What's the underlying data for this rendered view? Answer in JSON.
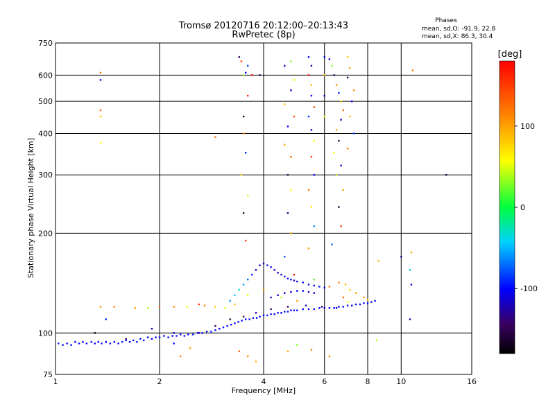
{
  "header": {
    "title_line1": "Tromsø 20120716 20:12:00–20:13:43",
    "title_line2": "RwPretec (8p)",
    "phases_heading": "Phases",
    "phases_o": "mean, sd,O: -91.9, 22.8",
    "phases_x": "mean, sd,X: 86.3, 30.4"
  },
  "colorbar": {
    "label": "[deg]",
    "min": -180,
    "max": 180,
    "ticks": [
      100,
      0,
      -100
    ]
  },
  "chart_data": {
    "type": "scatter",
    "xlabel": "Frequency [MHz]",
    "ylabel": "Stationary phase Virtual Height [km]",
    "xscale": "log",
    "yscale": "log",
    "xlim": [
      1,
      16
    ],
    "ylim": [
      75,
      750
    ],
    "xticks": [
      1,
      2,
      4,
      6,
      8,
      10,
      16
    ],
    "yticks": [
      75,
      100,
      200,
      300,
      400,
      500,
      600,
      750
    ],
    "grid": true,
    "color_by": "phase_deg",
    "points": [
      [
        1.02,
        93,
        -95
      ],
      [
        1.05,
        92,
        -100
      ],
      [
        1.08,
        93,
        -98
      ],
      [
        1.11,
        92,
        -97
      ],
      [
        1.14,
        94,
        -102
      ],
      [
        1.17,
        93,
        -96
      ],
      [
        1.2,
        94,
        -99
      ],
      [
        1.23,
        93,
        -101
      ],
      [
        1.27,
        94,
        -97
      ],
      [
        1.3,
        93,
        -100
      ],
      [
        1.33,
        94,
        -98
      ],
      [
        1.36,
        93,
        -95
      ],
      [
        1.4,
        94,
        -103
      ],
      [
        1.44,
        93,
        -99
      ],
      [
        1.48,
        94,
        -97
      ],
      [
        1.52,
        93,
        -100
      ],
      [
        1.56,
        94,
        -96
      ],
      [
        1.6,
        95,
        -98
      ],
      [
        1.64,
        94,
        -101
      ],
      [
        1.68,
        95,
        -99
      ],
      [
        1.72,
        94,
        -97
      ],
      [
        1.76,
        96,
        -100
      ],
      [
        1.8,
        95,
        -98
      ],
      [
        1.85,
        97,
        -96
      ],
      [
        1.9,
        96,
        -102
      ],
      [
        1.95,
        97,
        -99
      ],
      [
        2.0,
        97,
        -100
      ],
      [
        2.06,
        98,
        -97
      ],
      [
        2.12,
        97,
        -99
      ],
      [
        2.18,
        98,
        -101
      ],
      [
        2.24,
        98,
        -96
      ],
      [
        2.3,
        99,
        -100
      ],
      [
        2.36,
        98,
        -98
      ],
      [
        2.42,
        99,
        -97
      ],
      [
        2.5,
        99,
        -101
      ],
      [
        2.58,
        100,
        -99
      ],
      [
        2.66,
        100,
        -98
      ],
      [
        2.74,
        101,
        -100
      ],
      [
        2.82,
        101,
        -96
      ],
      [
        2.9,
        102,
        -99
      ],
      [
        2.98,
        103,
        -101
      ],
      [
        3.06,
        104,
        -98
      ],
      [
        3.14,
        105,
        -100
      ],
      [
        3.22,
        106,
        -97
      ],
      [
        3.3,
        107,
        -99
      ],
      [
        3.38,
        108,
        -102
      ],
      [
        3.46,
        109,
        -98
      ],
      [
        3.55,
        110,
        -100
      ],
      [
        3.64,
        110,
        -97
      ],
      [
        3.73,
        111,
        -99
      ],
      [
        3.82,
        111,
        -101
      ],
      [
        3.9,
        112,
        -98
      ],
      [
        4.0,
        113,
        -100
      ],
      [
        4.1,
        113,
        -97
      ],
      [
        4.2,
        114,
        -99
      ],
      [
        4.3,
        114,
        -100
      ],
      [
        4.4,
        115,
        -98
      ],
      [
        4.5,
        115,
        -101
      ],
      [
        4.6,
        116,
        -99
      ],
      [
        4.7,
        116,
        -97
      ],
      [
        4.8,
        117,
        -100
      ],
      [
        4.9,
        117,
        -98
      ],
      [
        5.0,
        117,
        -99
      ],
      [
        5.2,
        118,
        -101
      ],
      [
        5.4,
        118,
        -98
      ],
      [
        5.6,
        118,
        -100
      ],
      [
        5.8,
        119,
        -97
      ],
      [
        6.0,
        119,
        -99
      ],
      [
        6.2,
        119,
        -100
      ],
      [
        6.4,
        119,
        -98
      ],
      [
        6.6,
        120,
        -101
      ],
      [
        6.8,
        120,
        -99
      ],
      [
        7.0,
        121,
        -97
      ],
      [
        7.2,
        121,
        -100
      ],
      [
        7.4,
        122,
        -98
      ],
      [
        7.6,
        122,
        -99
      ],
      [
        7.8,
        123,
        -100
      ],
      [
        8.0,
        123,
        -98
      ],
      [
        8.2,
        124,
        -99
      ],
      [
        8.4,
        125,
        -101
      ],
      [
        1.3,
        100,
        -170
      ],
      [
        1.6,
        96,
        -150
      ],
      [
        1.9,
        103,
        -120
      ],
      [
        2.2,
        100,
        -110
      ],
      [
        2.6,
        100,
        -130
      ],
      [
        2.9,
        105,
        -140
      ],
      [
        3.2,
        110,
        -160
      ],
      [
        3.5,
        112,
        -150
      ],
      [
        3.8,
        115,
        -130
      ],
      [
        4.2,
        118,
        -145
      ],
      [
        4.7,
        120,
        -155
      ],
      [
        5.3,
        121,
        -120
      ],
      [
        5.9,
        120,
        -140
      ],
      [
        6.5,
        119,
        -110
      ],
      [
        3.2,
        125,
        -60
      ],
      [
        3.3,
        130,
        -45
      ],
      [
        3.4,
        135,
        -30
      ],
      [
        3.5,
        140,
        -55
      ],
      [
        3.6,
        145,
        -70
      ],
      [
        3.7,
        150,
        -90
      ],
      [
        3.8,
        155,
        -110
      ],
      [
        3.9,
        160,
        -120
      ],
      [
        4.0,
        162,
        -115
      ],
      [
        4.1,
        160,
        -105
      ],
      [
        4.2,
        158,
        -100
      ],
      [
        4.3,
        155,
        -108
      ],
      [
        4.4,
        152,
        -112
      ],
      [
        4.5,
        150,
        -118
      ],
      [
        4.6,
        148,
        -110
      ],
      [
        4.7,
        146,
        -105
      ],
      [
        4.8,
        145,
        -100
      ],
      [
        4.9,
        144,
        -108
      ],
      [
        5.0,
        143,
        -110
      ],
      [
        5.2,
        142,
        -104
      ],
      [
        5.4,
        140,
        -100
      ],
      [
        5.6,
        139,
        -98
      ],
      [
        5.8,
        138,
        -95
      ],
      [
        6.0,
        137,
        -100
      ],
      [
        4.2,
        128,
        -120
      ],
      [
        4.4,
        130,
        -115
      ],
      [
        4.6,
        132,
        -110
      ],
      [
        4.8,
        133,
        -105
      ],
      [
        5.0,
        134,
        -100
      ],
      [
        5.2,
        134,
        -108
      ],
      [
        5.4,
        133,
        -112
      ],
      [
        5.6,
        132,
        -106
      ],
      [
        3.3,
        122,
        90
      ],
      [
        3.6,
        130,
        60
      ],
      [
        4.0,
        135,
        110
      ],
      [
        4.5,
        128,
        40
      ],
      [
        5.0,
        125,
        100
      ],
      [
        6.2,
        138,
        120
      ],
      [
        6.6,
        142,
        110
      ],
      [
        6.9,
        140,
        95
      ],
      [
        7.1,
        135,
        80
      ],
      [
        7.4,
        132,
        100
      ],
      [
        7.8,
        128,
        105
      ],
      [
        8.0,
        126,
        90
      ],
      [
        7.0,
        124,
        60
      ],
      [
        6.8,
        128,
        130
      ],
      [
        5.6,
        145,
        20
      ],
      [
        4.9,
        150,
        170
      ],
      [
        2.0,
        120,
        130
      ],
      [
        2.2,
        120,
        110
      ],
      [
        2.4,
        120,
        60
      ],
      [
        2.7,
        121,
        115
      ],
      [
        2.6,
        122,
        150
      ],
      [
        1.35,
        120,
        110
      ],
      [
        1.48,
        120,
        120
      ],
      [
        1.7,
        119,
        100
      ],
      [
        1.85,
        119,
        40
      ],
      [
        2.9,
        120,
        80
      ],
      [
        3.1,
        119,
        50
      ],
      [
        2.45,
        90,
        100
      ],
      [
        2.3,
        85,
        120
      ],
      [
        3.6,
        85,
        110
      ],
      [
        3.8,
        82,
        90
      ],
      [
        3.4,
        88,
        130
      ],
      [
        4.7,
        88,
        100
      ],
      [
        5.0,
        92,
        30
      ],
      [
        5.5,
        89,
        120
      ],
      [
        6.2,
        85,
        110
      ],
      [
        8.5,
        95,
        40
      ],
      [
        1.4,
        110,
        -90
      ],
      [
        2.2,
        93,
        -100
      ],
      [
        1.35,
        580,
        -110
      ],
      [
        1.35,
        610,
        120
      ],
      [
        1.35,
        450,
        80
      ],
      [
        1.35,
        470,
        130
      ],
      [
        1.35,
        375,
        60
      ],
      [
        3.4,
        680,
        -150
      ],
      [
        3.45,
        660,
        150
      ],
      [
        3.5,
        600,
        30
      ],
      [
        3.55,
        610,
        -100
      ],
      [
        3.6,
        640,
        -80
      ],
      [
        3.7,
        600,
        170
      ],
      [
        3.6,
        520,
        160
      ],
      [
        3.5,
        450,
        -170
      ],
      [
        3.5,
        400,
        110
      ],
      [
        3.55,
        350,
        -90
      ],
      [
        3.45,
        300,
        70
      ],
      [
        3.6,
        260,
        40
      ],
      [
        3.5,
        230,
        -160
      ],
      [
        3.55,
        190,
        150
      ],
      [
        3.9,
        600,
        -140
      ],
      [
        4.6,
        640,
        -120
      ],
      [
        4.8,
        660,
        30
      ],
      [
        4.9,
        580,
        60
      ],
      [
        4.8,
        540,
        -110
      ],
      [
        4.6,
        490,
        90
      ],
      [
        4.9,
        450,
        140
      ],
      [
        4.7,
        420,
        -100
      ],
      [
        4.6,
        370,
        100
      ],
      [
        4.8,
        340,
        120
      ],
      [
        4.7,
        300,
        -150
      ],
      [
        4.8,
        270,
        60
      ],
      [
        4.7,
        230,
        -130
      ],
      [
        4.8,
        200,
        90
      ],
      [
        4.6,
        170,
        -80
      ],
      [
        5.4,
        680,
        -100
      ],
      [
        5.5,
        640,
        -120
      ],
      [
        5.4,
        600,
        170
      ],
      [
        5.5,
        560,
        90
      ],
      [
        5.5,
        520,
        -100
      ],
      [
        5.6,
        480,
        140
      ],
      [
        5.4,
        450,
        -90
      ],
      [
        5.5,
        410,
        -110
      ],
      [
        5.6,
        380,
        60
      ],
      [
        5.5,
        340,
        150
      ],
      [
        5.6,
        300,
        -100
      ],
      [
        5.4,
        270,
        120
      ],
      [
        5.5,
        240,
        70
      ],
      [
        5.6,
        210,
        -60
      ],
      [
        5.4,
        180,
        110
      ],
      [
        6.2,
        670,
        -110
      ],
      [
        6.3,
        640,
        30
      ],
      [
        6.4,
        600,
        -140
      ],
      [
        6.5,
        560,
        110
      ],
      [
        6.6,
        530,
        -90
      ],
      [
        6.7,
        500,
        80
      ],
      [
        6.8,
        470,
        130
      ],
      [
        6.7,
        440,
        -120
      ],
      [
        6.5,
        410,
        100
      ],
      [
        6.6,
        380,
        -150
      ],
      [
        6.4,
        350,
        60
      ],
      [
        6.7,
        320,
        -110
      ],
      [
        6.5,
        300,
        40
      ],
      [
        6.8,
        270,
        100
      ],
      [
        6.6,
        240,
        -160
      ],
      [
        6.7,
        210,
        150
      ],
      [
        6.3,
        185,
        -70
      ],
      [
        7.0,
        680,
        80
      ],
      [
        7.1,
        630,
        100
      ],
      [
        7.0,
        590,
        -150
      ],
      [
        7.3,
        540,
        110
      ],
      [
        7.2,
        500,
        -100
      ],
      [
        7.1,
        450,
        90
      ],
      [
        7.3,
        400,
        -80
      ],
      [
        7.0,
        360,
        120
      ],
      [
        6.0,
        680,
        -100
      ],
      [
        6.0,
        600,
        90
      ],
      [
        6.0,
        520,
        -120
      ],
      [
        6.0,
        450,
        60
      ],
      [
        2.9,
        390,
        120
      ],
      [
        10.8,
        620,
        120
      ],
      [
        10.7,
        175,
        100
      ],
      [
        10.6,
        155,
        -40
      ],
      [
        10.7,
        140,
        -110
      ],
      [
        10.6,
        110,
        -120
      ],
      [
        10.0,
        170,
        -130
      ],
      [
        8.6,
        165,
        90
      ],
      [
        13.5,
        300,
        -160
      ]
    ]
  }
}
